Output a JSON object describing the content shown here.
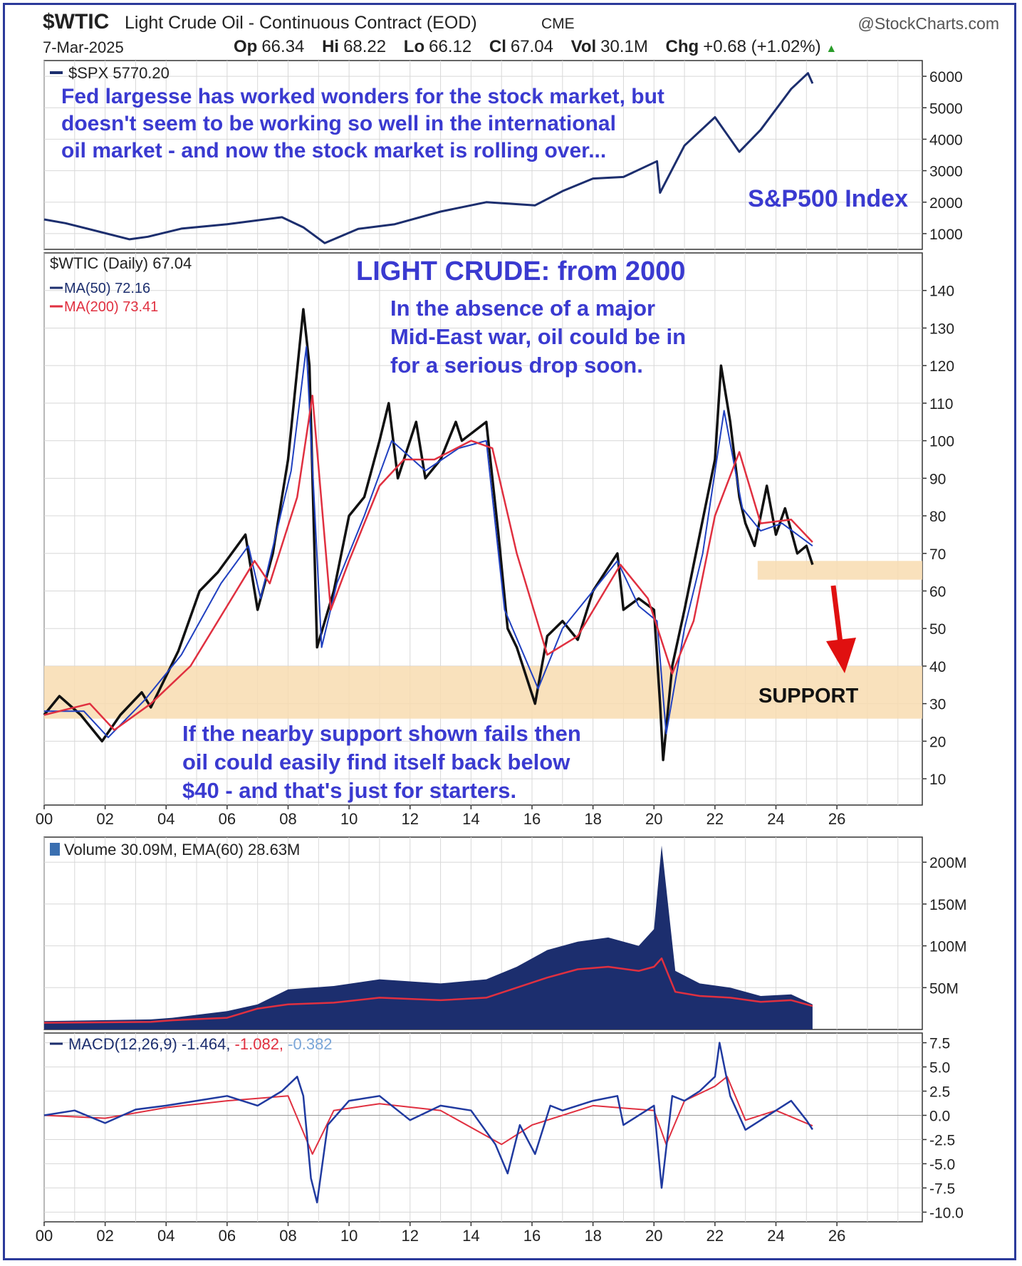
{
  "header": {
    "symbol": "$WTIC",
    "description": "Light Crude Oil - Continuous Contract (EOD)",
    "exchange": "CME",
    "brand": "@StockCharts.com",
    "date": "7-Mar-2025",
    "open_label": "Op",
    "open": "66.34",
    "high_label": "Hi",
    "high": "68.22",
    "low_label": "Lo",
    "low": "66.12",
    "close_label": "Cl",
    "close": "67.04",
    "vol_label": "Vol",
    "vol": "30.1M",
    "chg_label": "Chg",
    "chg": "+0.68 (+1.02%)",
    "chg_arrow": "▲"
  },
  "colors": {
    "navy": "#1c2e6e",
    "ma200": "#e03040",
    "annotation": "#3a3ad0",
    "support_band": "#f8dcb0",
    "arrow": "#e01010",
    "grid": "#d8d8d8"
  },
  "chart_data": [
    {
      "type": "line",
      "panel": "spx",
      "legend": "$SPX 5770.20",
      "annotation": "Fed largesse has worked wonders for the stock market, but doesn't seem to be working so well in the international oil market - and now the stock market is rolling over...",
      "index_label": "S&P500 Index",
      "ylim": [
        500,
        6500
      ],
      "yticks": [
        "6000",
        "5000",
        "4000",
        "3000",
        "2000",
        "1000"
      ],
      "series": [
        {
          "name": "$SPX",
          "x": [
            2000,
            2000.7,
            2002.8,
            2003.4,
            2004.5,
            2006,
            2007.8,
            2008.5,
            2009.2,
            2010.3,
            2011.5,
            2013,
            2014.5,
            2016.1,
            2017,
            2018,
            2019,
            2020.1,
            2020.2,
            2021,
            2022,
            2022.8,
            2023.5,
            2024.5,
            2025.05,
            2025.2
          ],
          "y": [
            1450,
            1330,
            820,
            900,
            1160,
            1300,
            1520,
            1200,
            700,
            1150,
            1300,
            1700,
            2000,
            1900,
            2350,
            2750,
            2800,
            3300,
            2300,
            3800,
            4700,
            3600,
            4300,
            5600,
            6100,
            5770
          ]
        }
      ]
    },
    {
      "type": "line",
      "panel": "wtic",
      "legend": "$WTIC (Daily) 67.04",
      "title": "LIGHT CRUDE: from 2000",
      "annotation_top": "In the absence of a major Mid-East war, oil could be in for a serious drop soon.",
      "annotation_bottom": "If the nearby support shown fails then oil could easily find itself back below $40 - and that's just for starters.",
      "support_label": "SUPPORT",
      "ylim": [
        3,
        150
      ],
      "yticks": [
        "140",
        "130",
        "120",
        "110",
        "100",
        "90",
        "80",
        "70",
        "60",
        "50",
        "40",
        "30",
        "20",
        "10"
      ],
      "xticks": [
        "00",
        "02",
        "04",
        "06",
        "08",
        "10",
        "12",
        "14",
        "16",
        "18",
        "20",
        "22",
        "24",
        "26"
      ],
      "support_zones": [
        [
          26,
          40
        ],
        [
          63,
          68
        ]
      ],
      "series": [
        {
          "name": "$WTIC",
          "x": [
            2000,
            2000.5,
            2001.2,
            2001.9,
            2002.5,
            2003.2,
            2003.5,
            2004.4,
            2005.1,
            2005.7,
            2006.6,
            2007,
            2007.5,
            2008.0,
            2008.5,
            2008.7,
            2008.95,
            2009.5,
            2010.0,
            2010.5,
            2011.0,
            2011.3,
            2011.6,
            2012.2,
            2012.5,
            2013.0,
            2013.5,
            2013.7,
            2014.5,
            2014.9,
            2015.2,
            2015.5,
            2016.1,
            2016.5,
            2017.0,
            2017.5,
            2018.0,
            2018.8,
            2019.0,
            2019.5,
            2020.0,
            2020.2,
            2020.3,
            2020.6,
            2021.0,
            2021.5,
            2022.0,
            2022.2,
            2022.5,
            2022.8,
            2023.0,
            2023.3,
            2023.7,
            2024.0,
            2024.3,
            2024.7,
            2025.0,
            2025.2
          ],
          "y": [
            27,
            32,
            27,
            20,
            27,
            33,
            29,
            44,
            60,
            65,
            75,
            55,
            70,
            95,
            135,
            120,
            45,
            60,
            80,
            85,
            100,
            110,
            90,
            105,
            90,
            95,
            105,
            100,
            105,
            75,
            50,
            45,
            30,
            48,
            52,
            47,
            60,
            70,
            55,
            58,
            55,
            30,
            15,
            40,
            55,
            75,
            95,
            120,
            105,
            85,
            78,
            72,
            88,
            75,
            82,
            70,
            72,
            67
          ]
        },
        {
          "name": "MA(50) 72.16",
          "x": [
            2000,
            2001.3,
            2002.1,
            2003.3,
            2004.5,
            2005.8,
            2006.7,
            2007.1,
            2008.1,
            2008.6,
            2009.1,
            2009.6,
            2010.5,
            2011.4,
            2012.5,
            2013.6,
            2014.5,
            2015.1,
            2016.2,
            2017.0,
            2018.8,
            2019.5,
            2020.1,
            2020.4,
            2021.0,
            2021.6,
            2022.3,
            2022.9,
            2023.5,
            2024.2,
            2025.2
          ],
          "y": [
            28,
            28,
            21,
            31,
            43,
            62,
            72,
            58,
            92,
            125,
            45,
            62,
            80,
            100,
            92,
            98,
            100,
            55,
            34,
            50,
            68,
            56,
            52,
            22,
            50,
            70,
            108,
            82,
            76,
            78,
            72
          ]
        },
        {
          "name": "MA(200) 73.41",
          "x": [
            2000,
            2001.5,
            2002.3,
            2003.5,
            2004.8,
            2006.0,
            2006.9,
            2007.4,
            2008.3,
            2008.8,
            2009.4,
            2010.0,
            2011.0,
            2011.8,
            2012.8,
            2014.0,
            2014.7,
            2015.5,
            2016.5,
            2017.5,
            2018.9,
            2019.8,
            2020.6,
            2021.3,
            2022.0,
            2022.8,
            2023.5,
            2024.5,
            2025.2
          ],
          "y": [
            27,
            30,
            23,
            30,
            40,
            56,
            68,
            62,
            85,
            112,
            55,
            68,
            88,
            95,
            95,
            100,
            98,
            70,
            43,
            48,
            67,
            58,
            38,
            52,
            80,
            97,
            78,
            79,
            73
          ]
        }
      ]
    },
    {
      "type": "bar",
      "panel": "volume",
      "legend": "Volume 30.09M, EMA(60) 28.63M",
      "ylim": [
        0,
        230
      ],
      "yticks": [
        "200M",
        "150M",
        "100M",
        "50M"
      ],
      "series": [
        {
          "name": "Volume",
          "x": [
            2000,
            2003.5,
            2004.2,
            2006.0,
            2007.0,
            2008.0,
            2009.5,
            2011.0,
            2013.0,
            2014.5,
            2015.5,
            2016.5,
            2017.5,
            2018.5,
            2019.5,
            2020.0,
            2020.25,
            2020.7,
            2021.5,
            2022.5,
            2023.5,
            2024.5,
            2025.2
          ],
          "y": [
            10,
            12,
            14,
            22,
            30,
            48,
            52,
            60,
            55,
            60,
            75,
            95,
            105,
            110,
            100,
            120,
            220,
            70,
            55,
            50,
            40,
            42,
            30
          ]
        },
        {
          "name": "EMA(60)",
          "x": [
            2000,
            2003.5,
            2004.2,
            2006.0,
            2007.0,
            2008.0,
            2009.5,
            2011.0,
            2013.0,
            2014.5,
            2015.5,
            2016.5,
            2017.5,
            2018.5,
            2019.5,
            2020.0,
            2020.25,
            2020.7,
            2021.5,
            2022.5,
            2023.5,
            2024.5,
            2025.2
          ],
          "y": [
            8,
            9,
            11,
            14,
            25,
            30,
            32,
            38,
            35,
            38,
            50,
            62,
            72,
            75,
            70,
            75,
            85,
            45,
            40,
            38,
            33,
            35,
            28
          ]
        }
      ]
    },
    {
      "type": "line",
      "panel": "macd",
      "legend_main": "MACD(12,26,9) -1.464",
      "legend_signal": "-1.082",
      "legend_hist": "-0.382",
      "ylim": [
        -11,
        8.5
      ],
      "yticks": [
        "7.5",
        "5.0",
        "2.5",
        "0.0",
        "-2.5",
        "-5.0",
        "-7.5",
        "-10.0"
      ],
      "xticks": [
        "00",
        "02",
        "04",
        "06",
        "08",
        "10",
        "12",
        "14",
        "16",
        "18",
        "20",
        "22",
        "24",
        "26"
      ],
      "series": [
        {
          "name": "MACD",
          "x": [
            2000,
            2001,
            2002,
            2003,
            2004,
            2005,
            2006,
            2007,
            2007.8,
            2008.3,
            2008.5,
            2008.75,
            2008.95,
            2009.3,
            2010,
            2011,
            2012,
            2013,
            2014,
            2014.8,
            2015.2,
            2015.6,
            2016.1,
            2016.6,
            2017,
            2018,
            2018.8,
            2019,
            2020,
            2020.25,
            2020.6,
            2021,
            2021.5,
            2022,
            2022.15,
            2022.5,
            2023,
            2024,
            2024.5,
            2025,
            2025.2
          ],
          "y": [
            0,
            0.5,
            -0.8,
            0.6,
            1.0,
            1.5,
            2.0,
            1.0,
            2.5,
            4.0,
            2.0,
            -6.5,
            -9.0,
            -1.0,
            1.5,
            2.0,
            -0.5,
            1.0,
            0.5,
            -3.0,
            -6.0,
            -1.0,
            -4.0,
            1.0,
            0.5,
            1.5,
            2.0,
            -1.0,
            1.0,
            -7.5,
            2.0,
            1.5,
            2.5,
            4.0,
            7.5,
            2.0,
            -1.5,
            0.5,
            1.5,
            -0.5,
            -1.464
          ]
        },
        {
          "name": "Signal",
          "x": [
            2000,
            2002,
            2004,
            2006,
            2008,
            2008.8,
            2009.5,
            2011,
            2013,
            2015,
            2016,
            2018,
            2020,
            2020.4,
            2021,
            2022,
            2022.4,
            2023,
            2024,
            2025.2
          ],
          "y": [
            0,
            -0.3,
            0.8,
            1.5,
            2.0,
            -4.0,
            0.5,
            1.2,
            0.5,
            -3.0,
            -1.0,
            1.0,
            0.5,
            -3.0,
            1.5,
            3.0,
            4.0,
            -0.5,
            0.5,
            -1.082
          ]
        }
      ]
    }
  ]
}
